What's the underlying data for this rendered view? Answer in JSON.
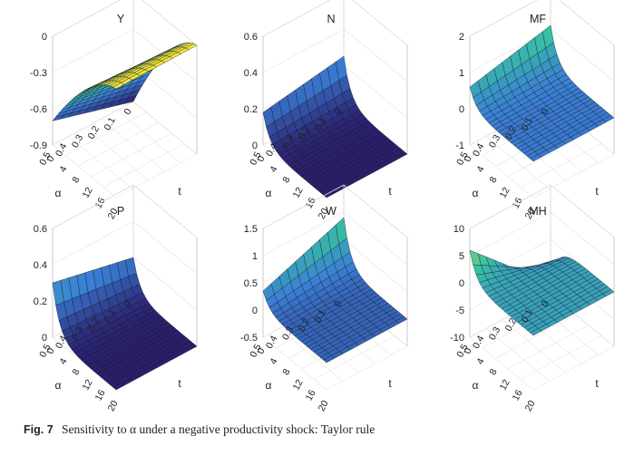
{
  "figure": {
    "caption_label": "Fig. 7",
    "caption_text": "Sensitivity to α under a negative productivity shock: Taylor rule"
  },
  "chart_data": [
    {
      "type": "surface",
      "title": "Y",
      "alpha_ticks": [
        "0.5",
        "0.4",
        "0.3",
        "0.2",
        "0.1",
        "0"
      ],
      "t_ticks": [
        "0",
        "4",
        "8",
        "12",
        "16",
        "20"
      ],
      "z_ticks": [
        "0",
        "-0.3",
        "-0.6",
        "-0.9"
      ],
      "zlim": [
        -0.9,
        0
      ],
      "xlabel": "α",
      "ylabel": "t",
      "profile": "rise",
      "impact_at_alpha_0_5": -0.7,
      "impact_at_alpha_0": -0.9,
      "steady_state": 0.0
    },
    {
      "type": "surface",
      "title": "N",
      "alpha_ticks": [
        "0.5",
        "0.4",
        "0.3",
        "0.2",
        "0.1",
        "0"
      ],
      "t_ticks": [
        "0",
        "4",
        "8",
        "12",
        "16",
        "20"
      ],
      "z_ticks": [
        "0.6",
        "0.4",
        "0.2",
        "0"
      ],
      "zlim": [
        0,
        0.6
      ],
      "xlabel": "α",
      "ylabel": "t",
      "profile": "decay",
      "impact_at_alpha_0_5": 0.18,
      "impact_at_alpha_0": 0.25,
      "steady_state": 0.0
    },
    {
      "type": "surface",
      "title": "MF",
      "alpha_ticks": [
        "0.5",
        "0.4",
        "0.3",
        "0.2",
        "0.1",
        "0"
      ],
      "t_ticks": [
        "0",
        "4",
        "8",
        "12",
        "16",
        "20"
      ],
      "z_ticks": [
        "2",
        "1",
        "0",
        "-1"
      ],
      "zlim": [
        -1,
        2
      ],
      "xlabel": "α",
      "ylabel": "t",
      "profile": "decay",
      "impact_at_alpha_0_5": 0.6,
      "impact_at_alpha_0": 1.1,
      "steady_state": 0.0
    },
    {
      "type": "surface",
      "title": "P",
      "alpha_ticks": [
        "0.5",
        "0.4",
        "0.3",
        "0.2",
        "0.1",
        "0"
      ],
      "t_ticks": [
        "0",
        "4",
        "8",
        "12",
        "16",
        "20"
      ],
      "z_ticks": [
        "0.6",
        "0.4",
        "0.2",
        "0"
      ],
      "zlim": [
        0,
        0.6
      ],
      "xlabel": "α",
      "ylabel": "t",
      "profile": "decay",
      "impact_at_alpha_0_5": 0.3,
      "impact_at_alpha_0": 0.2,
      "steady_state": 0.0
    },
    {
      "type": "surface",
      "title": "W",
      "alpha_ticks": [
        "0.5",
        "0.4",
        "0.3",
        "0.2",
        "0.1",
        "0"
      ],
      "t_ticks": [
        "0",
        "4",
        "8",
        "12",
        "16",
        "20"
      ],
      "z_ticks": [
        "1.5",
        "1",
        "0.5",
        "0",
        "-0.5"
      ],
      "zlim": [
        -0.5,
        1.5
      ],
      "xlabel": "α",
      "ylabel": "t",
      "profile": "decay",
      "impact_at_alpha_0_5": 0.35,
      "impact_at_alpha_0": 0.9,
      "steady_state": 0.0
    },
    {
      "type": "surface",
      "title": "MH",
      "alpha_ticks": [
        "0.5",
        "0.4",
        "0.3",
        "0.2",
        "0.1",
        "0"
      ],
      "t_ticks": [
        "0",
        "4",
        "8",
        "12",
        "16",
        "20"
      ],
      "z_ticks": [
        "10",
        "5",
        "0",
        "-5",
        "-10"
      ],
      "zlim": [
        -10,
        10
      ],
      "xlabel": "α",
      "ylabel": "t",
      "profile": "decay",
      "impact_at_alpha_0_5": 6.0,
      "impact_at_alpha_0": -8.0,
      "steady_state": 0.0
    }
  ]
}
